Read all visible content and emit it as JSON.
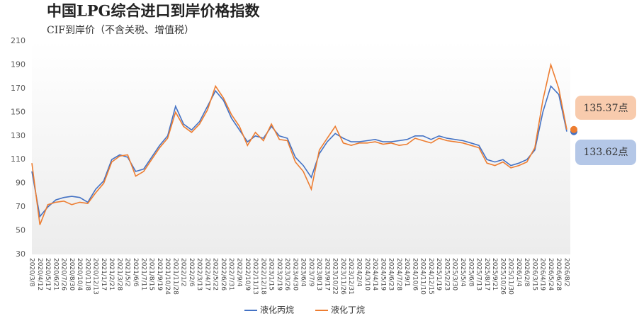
{
  "chart_data": {
    "type": "line",
    "title": "中国LPG综合进口到岸价格指数",
    "subtitle": "CIF到岸价（不含关税、增值税）",
    "categories": [
      "2020/3/8",
      "2020/4/12",
      "2020/5/17",
      "2020/6/21",
      "2020/7/26",
      "2020/8/30",
      "2020/10/4",
      "2020/11/8",
      "2020/12/13",
      "2021/1/17",
      "2021/2/21",
      "2021/3/28",
      "2021/5/2",
      "2021/6/6",
      "2021/7/11",
      "2021/8/15",
      "2021/9/19",
      "2021/10/24",
      "2021/11/28",
      "2022/1/2",
      "2022/2/6",
      "2022/3/13",
      "2022/4/17",
      "2022/5/22",
      "2022/6/26",
      "2022/7/31",
      "2022/9/4",
      "2022/10/9",
      "2022/11/13",
      "2022/12/18",
      "2023/1/15",
      "2023/2/19",
      "2023/3/26",
      "2023/4/30",
      "2023/6/4",
      "2023/7/9",
      "2023/8/13",
      "2023/9/17",
      "2023/10/22",
      "2023/11/26",
      "2023/12/31",
      "2024/2/4",
      "2024/3/10",
      "2024/4/14",
      "2024/5/19",
      "2024/6/23",
      "2024/7/28",
      "2024/9/1",
      "2024/10/6",
      "2024/11/10",
      "2024/12/15",
      "2025/1/19",
      "2025/2/23",
      "2025/3/30",
      "2025/5/4",
      "2025/6/8",
      "2025/7/13",
      "2025/8/17",
      "2025/9/21",
      "2025/10/26",
      "2025/11/30",
      "2026/1/4",
      "2026/2/8",
      "2026/3/15",
      "2026/4/19",
      "2026/5/24",
      "2026/6/28",
      "2026/8/2"
    ],
    "series": [
      {
        "name": "液化丙烷",
        "color": "#4472c4",
        "values": [
          100,
          62,
          70,
          76,
          78,
          79,
          78,
          74,
          85,
          92,
          110,
          114,
          112,
          100,
          102,
          112,
          122,
          130,
          155,
          140,
          135,
          142,
          155,
          168,
          160,
          145,
          135,
          125,
          130,
          128,
          138,
          130,
          128,
          112,
          105,
          95,
          115,
          125,
          132,
          128,
          125,
          125,
          126,
          127,
          125,
          125,
          126,
          127,
          130,
          130,
          127,
          130,
          128,
          127,
          126,
          124,
          122,
          110,
          108,
          110,
          105,
          107,
          110,
          118,
          150,
          172,
          165,
          133.62
        ]
      },
      {
        "name": "液化丁烷",
        "color": "#ed7d31",
        "values": [
          107,
          55,
          72,
          74,
          75,
          72,
          74,
          73,
          82,
          90,
          108,
          113,
          114,
          96,
          100,
          110,
          120,
          128,
          150,
          138,
          133,
          140,
          152,
          172,
          162,
          148,
          138,
          122,
          133,
          126,
          140,
          127,
          126,
          108,
          100,
          85,
          118,
          128,
          138,
          124,
          122,
          124,
          124,
          125,
          123,
          124,
          122,
          123,
          128,
          126,
          124,
          128,
          126,
          125,
          124,
          122,
          120,
          107,
          105,
          108,
          103,
          105,
          108,
          120,
          160,
          190,
          170,
          135.37
        ]
      }
    ],
    "annotations": [
      "135.37点",
      "133.62点"
    ],
    "ylim": [
      30,
      210
    ],
    "yticks": [
      30,
      50,
      70,
      90,
      110,
      130,
      150,
      170,
      190,
      210
    ],
    "grid": false,
    "legend": "bottom"
  }
}
